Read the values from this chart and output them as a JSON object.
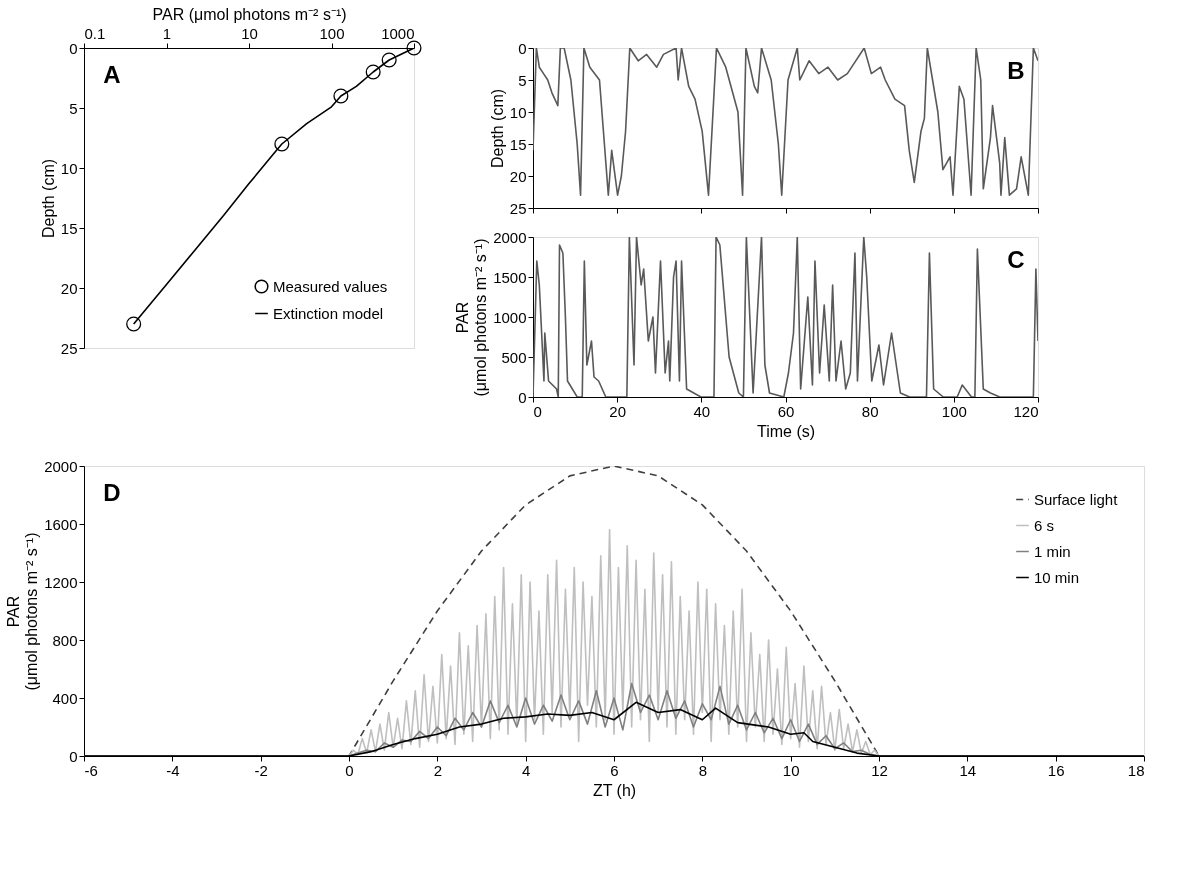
{
  "chart_data": [
    {
      "type": "line",
      "xlabel": "PAR (μmol photons m⁻² s⁻¹)",
      "ylabel": "Depth (cm)",
      "log": "x",
      "xlim": [
        0.1,
        1000
      ],
      "xticks": [
        0.1,
        1,
        10,
        100,
        1000
      ],
      "ylim": [
        25,
        0
      ],
      "yticks": [
        0,
        5,
        10,
        15,
        20,
        25
      ],
      "grid": false,
      "legend": "bottom right",
      "annotations": [
        "A"
      ],
      "series": [
        {
          "name": "Measured values",
          "type": "scatter",
          "marker": "circle",
          "color": "#000000",
          "x": [
            0.4,
            25,
            130,
            320,
            500,
            1000
          ],
          "values": [
            23,
            8,
            4,
            2,
            1,
            0
          ]
        },
        {
          "name": "Extinction model",
          "type": "line",
          "marker": "none",
          "color": "#000000",
          "x": [
            0.4,
            1,
            2,
            5,
            10,
            20,
            25,
            50,
            100,
            130,
            200,
            320,
            500,
            1000
          ],
          "values": [
            23,
            19.7,
            17.2,
            13.9,
            11.3,
            8.8,
            8,
            6.3,
            4.9,
            4,
            3.2,
            2,
            1,
            0
          ]
        }
      ]
    },
    {
      "type": "line",
      "ylabel": "Depth (cm)",
      "xlim": [
        0,
        120
      ],
      "xticks": [
        0,
        20,
        40,
        60,
        80,
        100,
        120
      ],
      "tick_labels": "y",
      "ylim": [
        25,
        0
      ],
      "yticks": [
        0,
        5,
        10,
        15,
        20,
        25
      ],
      "grid": false,
      "annotations": [
        "B"
      ],
      "series": [
        {
          "color": "#595959",
          "x": [
            0,
            0.8,
            1.5,
            2.5,
            3.5,
            4.5,
            5.9,
            6.5,
            7.4,
            9,
            10.5,
            11.3,
            12.1,
            13.5,
            15.8,
            17.9,
            18.7,
            20.1,
            21,
            22,
            23,
            25,
            27,
            29.4,
            31,
            34,
            34.5,
            35.3,
            37,
            38.5,
            40.2,
            41.7,
            43.6,
            45.8,
            48.7,
            49.8,
            50.6,
            52.6,
            53.4,
            54.3,
            56.6,
            58.3,
            59.1,
            60.6,
            62.8,
            63.4,
            65.6,
            67.9,
            70.1,
            72.4,
            74.7,
            78.7,
            80.4,
            82.6,
            83.7,
            86,
            88.3,
            89.4,
            90.6,
            92.2,
            93,
            93.7,
            96.2,
            97.4,
            99.1,
            99.8,
            101.3,
            102.4,
            104.1,
            105.3,
            106.4,
            107,
            108.7,
            109.2,
            110.9,
            111.2,
            112.1,
            113.2,
            114.9,
            116,
            117.7,
            118.9,
            120
          ],
          "values": [
            16,
            0,
            3,
            4,
            5,
            7,
            9,
            0,
            0,
            5,
            15,
            23,
            0,
            3,
            5,
            23,
            16,
            23,
            20,
            13,
            0,
            2,
            1,
            3,
            1,
            0,
            5,
            0,
            6,
            8,
            13,
            23,
            0,
            3,
            10,
            23,
            0,
            6,
            7,
            0,
            5,
            15,
            23,
            5,
            0,
            5,
            2,
            4,
            3,
            5,
            4,
            0,
            4,
            3,
            5,
            8,
            9,
            16,
            21,
            13,
            11,
            0,
            10,
            19,
            17,
            23,
            6,
            8,
            23,
            0,
            5,
            22,
            14,
            9,
            18,
            23,
            14,
            23,
            22,
            17,
            23,
            0,
            2
          ]
        }
      ]
    },
    {
      "type": "line",
      "xlabel": "Time (s)",
      "ylabel": "PAR\n(μmol photons m⁻² s⁻¹)",
      "xlim": [
        0,
        120
      ],
      "xticks": [
        0,
        20,
        40,
        60,
        80,
        100,
        120
      ],
      "ylim": [
        0,
        2000
      ],
      "yticks": [
        0,
        500,
        1000,
        1500,
        2000
      ],
      "grid": false,
      "annotations": [
        "C"
      ],
      "series": [
        {
          "color": "#595959",
          "x": [
            0,
            0.9,
            1.5,
            2.6,
            2.8,
            3.7,
            5.6,
            6,
            6.3,
            7.1,
            7.7,
            8.2,
            10.5,
            11.7,
            12.2,
            12.8,
            13.9,
            14.5,
            15.6,
            17.3,
            22.3,
            22.9,
            24,
            24.6,
            25.7,
            26.3,
            27.4,
            28.5,
            29.1,
            30.3,
            31.4,
            32.2,
            32.5,
            33.4,
            34,
            34.8,
            35.3,
            36.5,
            39.9,
            43,
            43.5,
            44.4,
            46.6,
            48.9,
            50,
            50.7,
            52.3,
            54.3,
            55.1,
            56.2,
            59.6,
            60.7,
            61.9,
            62.8,
            63.6,
            65.3,
            66.4,
            67,
            68.1,
            69.2,
            70.4,
            71.2,
            72,
            73.2,
            74.3,
            75.4,
            76.5,
            77.1,
            78.6,
            79.3,
            80.5,
            82.2,
            83.3,
            85.2,
            87.3,
            89.5,
            93.5,
            94.2,
            95.2,
            97.5,
            100.8,
            102,
            104.2,
            105,
            105.6,
            107,
            108.7,
            110.9,
            118.9,
            119.5,
            120
          ],
          "values": [
            0,
            1700,
            1400,
            200,
            800,
            200,
            100,
            0,
            1900,
            1800,
            1000,
            200,
            0,
            0,
            1700,
            400,
            700,
            250,
            200,
            0,
            0,
            2000,
            400,
            2000,
            1400,
            1600,
            700,
            1000,
            300,
            1700,
            300,
            700,
            200,
            1500,
            1700,
            200,
            1700,
            100,
            0,
            0,
            2000,
            1900,
            500,
            50,
            0,
            2000,
            50,
            2000,
            400,
            50,
            0,
            300,
            800,
            2000,
            100,
            1250,
            150,
            1700,
            300,
            1150,
            200,
            1400,
            200,
            700,
            100,
            300,
            1800,
            200,
            2000,
            1500,
            200,
            650,
            150,
            800,
            50,
            0,
            0,
            1800,
            100,
            0,
            0,
            150,
            0,
            0,
            1850,
            100,
            50,
            0,
            0,
            1600,
            700
          ]
        }
      ]
    },
    {
      "type": "line",
      "xlabel": "ZT (h)",
      "ylabel": "PAR\n(μmol photons m⁻² s⁻¹)",
      "xlim": [
        -6,
        18
      ],
      "xticks": [
        -6,
        -4,
        -2,
        0,
        2,
        4,
        6,
        8,
        10,
        12,
        14,
        16,
        18
      ],
      "ylim": [
        0,
        2000
      ],
      "yticks": [
        0,
        400,
        800,
        1200,
        1600,
        2000
      ],
      "grid": false,
      "legend": "top right",
      "annotations": [
        "D"
      ],
      "series": [
        {
          "name": "Surface light",
          "line_style": "dashed",
          "color": "#404040",
          "x": [
            -6,
            0,
            1,
            2,
            3,
            4,
            5,
            6,
            7,
            8,
            9,
            10,
            11,
            12,
            18
          ],
          "values": [
            0,
            0,
            518,
            1000,
            1414,
            1732,
            1932,
            2000,
            1932,
            1732,
            1414,
            1000,
            518,
            0,
            0
          ]
        },
        {
          "name": "6 s",
          "line_style": "solid",
          "color": "#bfbfbf",
          "x": [
            -6,
            0,
            0.1,
            0.2,
            0.3,
            0.4,
            0.5,
            0.6,
            0.7,
            0.8,
            0.9,
            1,
            1.1,
            1.2,
            1.3,
            1.4,
            1.5,
            1.6,
            1.7,
            1.8,
            1.9,
            2,
            2.1,
            2.2,
            2.3,
            2.4,
            2.5,
            2.6,
            2.7,
            2.8,
            2.9,
            3,
            3.1,
            3.2,
            3.3,
            3.4,
            3.5,
            3.6,
            3.7,
            3.8,
            3.9,
            4,
            4.1,
            4.2,
            4.3,
            4.4,
            4.5,
            4.6,
            4.7,
            4.8,
            4.9,
            5,
            5.1,
            5.2,
            5.3,
            5.4,
            5.5,
            5.6,
            5.7,
            5.8,
            5.9,
            6,
            6.1,
            6.2,
            6.3,
            6.4,
            6.5,
            6.6,
            6.7,
            6.8,
            6.9,
            7,
            7.1,
            7.2,
            7.3,
            7.4,
            7.5,
            7.6,
            7.7,
            7.8,
            7.9,
            8,
            8.1,
            8.2,
            8.3,
            8.4,
            8.5,
            8.6,
            8.7,
            8.8,
            8.9,
            9,
            9.1,
            9.2,
            9.3,
            9.4,
            9.5,
            9.6,
            9.7,
            9.8,
            9.9,
            10,
            10.1,
            10.2,
            10.3,
            10.4,
            10.5,
            10.6,
            10.7,
            10.8,
            10.9,
            11,
            11.1,
            11.2,
            11.3,
            11.4,
            11.5,
            11.6,
            11.7,
            11.8,
            11.9,
            12,
            18
          ],
          "values": [
            0,
            0,
            40,
            10,
            120,
            20,
            180,
            30,
            220,
            40,
            300,
            60,
            260,
            50,
            380,
            80,
            450,
            60,
            560,
            100,
            480,
            90,
            700,
            120,
            620,
            80,
            850,
            150,
            760,
            100,
            900,
            200,
            980,
            120,
            1100,
            180,
            1300,
            150,
            1050,
            220,
            1250,
            100,
            1200,
            250,
            1000,
            150,
            1250,
            300,
            1350,
            200,
            1150,
            280,
            1300,
            100,
            1200,
            350,
            1100,
            200,
            1380,
            250,
            1560,
            150,
            1300,
            300,
            1450,
            200,
            1350,
            250,
            1150,
            100,
            1400,
            300,
            1250,
            200,
            1340,
            150,
            1100,
            250,
            1000,
            150,
            1200,
            300,
            1150,
            100,
            1050,
            250,
            900,
            150,
            1000,
            200,
            1150,
            100,
            850,
            200,
            700,
            100,
            800,
            150,
            600,
            80,
            750,
            120,
            500,
            60,
            620,
            100,
            450,
            50,
            480,
            80,
            300,
            40,
            320,
            50,
            220,
            30,
            180,
            20,
            100,
            10,
            40,
            0,
            0
          ]
        },
        {
          "name": "1 min",
          "line_style": "solid",
          "color": "#808080",
          "x": [
            -6,
            0,
            0.2,
            0.4,
            0.6,
            0.8,
            1,
            1.2,
            1.4,
            1.6,
            1.8,
            2,
            2.2,
            2.4,
            2.6,
            2.8,
            3,
            3.2,
            3.4,
            3.6,
            3.8,
            4,
            4.2,
            4.4,
            4.6,
            4.8,
            5,
            5.2,
            5.4,
            5.6,
            5.8,
            6,
            6.2,
            6.4,
            6.6,
            6.8,
            7,
            7.2,
            7.4,
            7.6,
            7.8,
            8,
            8.2,
            8.4,
            8.6,
            8.8,
            9,
            9.2,
            9.4,
            9.6,
            9.8,
            10,
            10.2,
            10.4,
            10.6,
            10.8,
            11,
            11.2,
            11.4,
            11.6,
            11.8,
            12,
            18
          ],
          "values": [
            0,
            0,
            20,
            40,
            30,
            90,
            60,
            110,
            100,
            170,
            120,
            200,
            140,
            260,
            180,
            300,
            200,
            380,
            230,
            350,
            200,
            400,
            220,
            350,
            240,
            420,
            250,
            380,
            220,
            450,
            200,
            400,
            180,
            500,
            300,
            420,
            250,
            450,
            260,
            380,
            200,
            360,
            250,
            480,
            220,
            350,
            180,
            300,
            160,
            260,
            120,
            250,
            100,
            220,
            80,
            140,
            50,
            90,
            30,
            40,
            10,
            0,
            0
          ]
        },
        {
          "name": "10 min",
          "line_style": "solid",
          "color": "#000000",
          "x": [
            -6,
            0,
            0.5,
            1,
            1.5,
            2,
            2.5,
            3,
            3.5,
            4,
            4.5,
            5,
            5.5,
            6,
            6.5,
            7,
            7.5,
            8,
            8.3,
            8.8,
            9.5,
            10,
            10.3,
            10.5,
            11,
            11.5,
            12,
            18
          ],
          "values": [
            0,
            0,
            30,
            80,
            120,
            150,
            200,
            220,
            260,
            270,
            290,
            280,
            300,
            250,
            370,
            300,
            320,
            250,
            330,
            230,
            200,
            150,
            160,
            100,
            60,
            20,
            0,
            0
          ]
        }
      ]
    }
  ]
}
